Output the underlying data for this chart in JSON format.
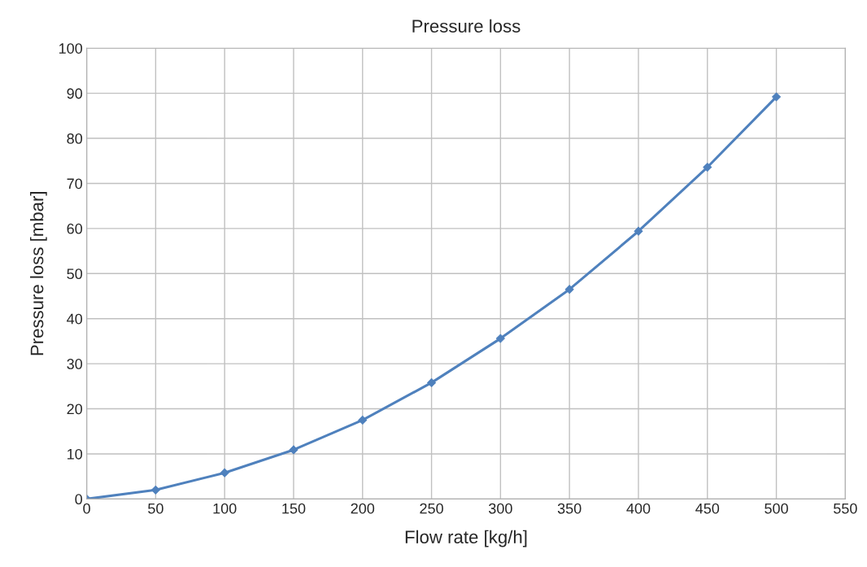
{
  "chart_data": {
    "type": "line",
    "title": "Pressure loss",
    "xlabel": "Flow rate [kg/h]",
    "ylabel": "Pressure loss [mbar]",
    "x": [
      0,
      50,
      100,
      150,
      200,
      250,
      300,
      350,
      400,
      450,
      500
    ],
    "series": [
      {
        "color": "#4f81bd",
        "values": [
          0,
          2.0,
          5.8,
          10.9,
          17.5,
          25.8,
          35.6,
          46.5,
          59.4,
          73.6,
          89.2
        ]
      }
    ],
    "xlim": [
      0,
      550
    ],
    "xticks": [
      0,
      50,
      100,
      150,
      200,
      250,
      300,
      350,
      400,
      450,
      500,
      550
    ],
    "ylim": [
      0,
      100
    ],
    "yticks": [
      0,
      10,
      20,
      30,
      40,
      50,
      60,
      70,
      80,
      90,
      100
    ],
    "grid": true,
    "marker": "diamond",
    "line_style": "solid"
  }
}
